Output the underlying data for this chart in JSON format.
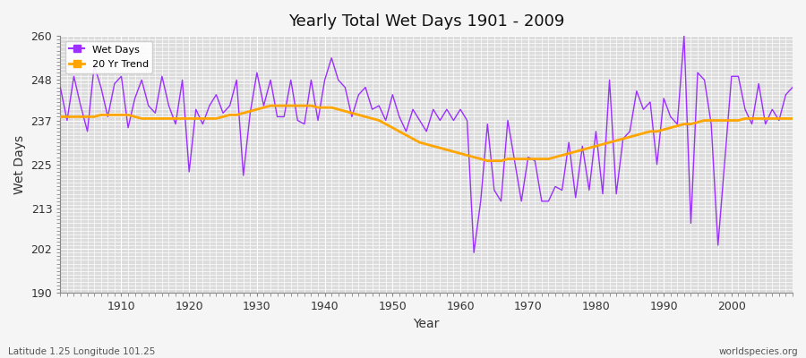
{
  "title": "Yearly Total Wet Days 1901 - 2009",
  "xlabel": "Year",
  "ylabel": "Wet Days",
  "ylim": [
    190,
    260
  ],
  "xlim": [
    1901,
    2009
  ],
  "yticks": [
    190,
    202,
    213,
    225,
    237,
    248,
    260
  ],
  "xticks": [
    1910,
    1920,
    1930,
    1940,
    1950,
    1960,
    1970,
    1980,
    1990,
    2000
  ],
  "bg_color": "#dcdcdc",
  "fig_color": "#f5f5f5",
  "line_color": "#9b30ff",
  "trend_color": "#ffa500",
  "footer_left": "Latitude 1.25 Longitude 101.25",
  "footer_right": "worldspecies.org",
  "legend_labels": [
    "Wet Days",
    "20 Yr Trend"
  ],
  "wet_days": [
    246,
    237,
    249,
    241,
    234,
    252,
    246,
    238,
    247,
    249,
    235,
    243,
    248,
    241,
    239,
    249,
    241,
    236,
    248,
    223,
    240,
    236,
    241,
    244,
    239,
    241,
    248,
    222,
    239,
    250,
    241,
    248,
    238,
    238,
    248,
    237,
    236,
    248,
    237,
    248,
    254,
    248,
    246,
    238,
    244,
    246,
    240,
    241,
    237,
    244,
    238,
    234,
    240,
    237,
    234,
    240,
    237,
    240,
    237,
    240,
    237,
    201,
    215,
    236,
    218,
    215,
    237,
    226,
    215,
    227,
    226,
    215,
    215,
    219,
    218,
    231,
    216,
    230,
    218,
    234,
    217,
    248,
    217,
    232,
    234,
    245,
    240,
    242,
    225,
    243,
    238,
    236,
    260,
    209,
    250,
    248,
    236,
    203,
    226,
    249,
    249,
    240,
    236,
    247,
    236,
    240,
    237,
    244,
    246
  ],
  "trend": [
    238.0,
    238.0,
    238.0,
    238.0,
    238.0,
    238.0,
    238.5,
    238.5,
    238.5,
    238.5,
    238.5,
    238.0,
    237.5,
    237.5,
    237.5,
    237.5,
    237.5,
    237.5,
    237.5,
    237.5,
    237.5,
    237.5,
    237.5,
    237.5,
    238.0,
    238.5,
    238.5,
    239.0,
    239.5,
    240.0,
    240.5,
    241.0,
    241.0,
    241.0,
    241.0,
    241.0,
    241.0,
    241.0,
    240.5,
    240.5,
    240.5,
    240.0,
    239.5,
    239.0,
    238.5,
    238.0,
    237.5,
    237.0,
    236.0,
    235.0,
    234.0,
    233.0,
    232.0,
    231.0,
    230.5,
    230.0,
    229.5,
    229.0,
    228.5,
    228.0,
    227.5,
    227.0,
    226.5,
    226.0,
    226.0,
    226.0,
    226.5,
    226.5,
    226.5,
    226.5,
    226.5,
    226.5,
    226.5,
    227.0,
    227.5,
    228.0,
    228.5,
    229.0,
    229.5,
    230.0,
    230.5,
    231.0,
    231.5,
    232.0,
    232.5,
    233.0,
    233.5,
    234.0,
    234.0,
    234.5,
    235.0,
    235.5,
    236.0,
    236.0,
    236.5,
    237.0,
    237.0,
    237.0,
    237.0,
    237.0,
    237.0,
    237.5,
    237.5,
    237.5,
    237.5,
    237.5,
    237.5,
    237.5,
    237.5
  ]
}
